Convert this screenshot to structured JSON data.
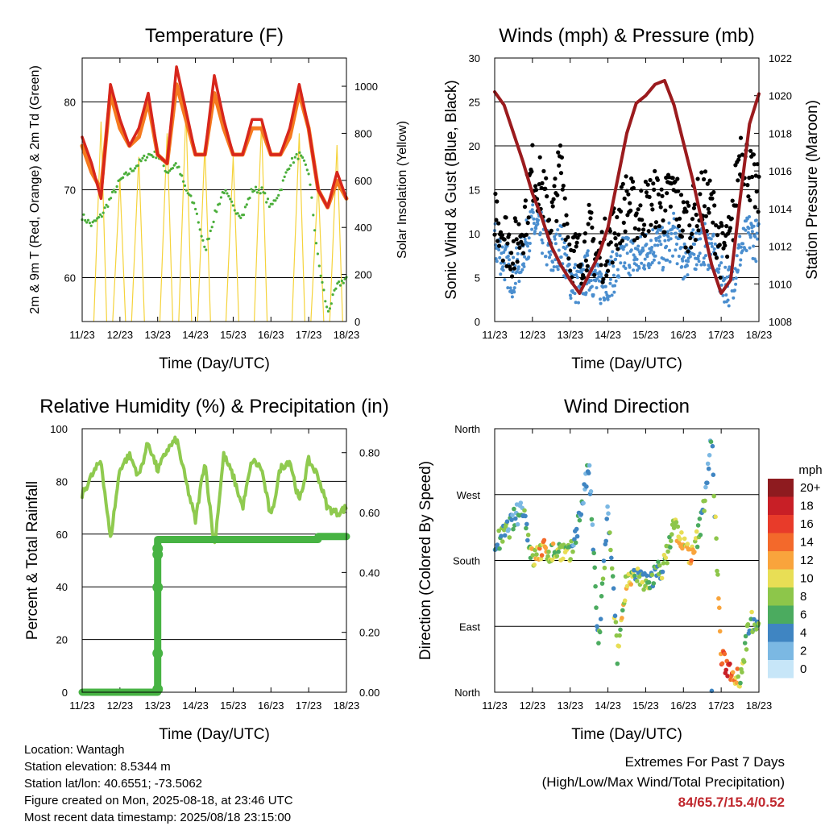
{
  "colors": {
    "temp2m": "#d7261c",
    "temp9m": "#f57a1f",
    "dewpoint": "#4aae3a",
    "solar": "#f5d33b",
    "wind": "#4a8ecf",
    "gust": "#000000",
    "pressure": "#9b1b1e",
    "rh": "#8fca4f",
    "rain": "#47b343"
  },
  "x_tick_labels": [
    "11/23",
    "12/23",
    "13/23",
    "14/23",
    "15/23",
    "16/23",
    "17/23",
    "18/23"
  ],
  "x_axis_label": "Time (Day/UTC)",
  "wind_dir_colorbar": {
    "unit": "mph",
    "labels": [
      "20+",
      "18",
      "16",
      "14",
      "12",
      "10",
      "8",
      "6",
      "4",
      "2",
      "0"
    ],
    "colors": [
      "#8e1b1f",
      "#c81f26",
      "#e83b2a",
      "#f3692b",
      "#f9a43c",
      "#e8de55",
      "#8dc64a",
      "#4bab5f",
      "#3f85c2",
      "#7bb8e3",
      "#c7e6f8"
    ]
  },
  "info": {
    "location": "Location: Wantagh",
    "elevation": "Station elevation: 8.5344 m",
    "latlon": "Station lat/lon: 40.6551; -73.5062",
    "created": "Figure created on Mon, 2025-08-18, at 23:46 UTC",
    "recent": "Most recent data timestamp: 2025/08/18 23:15:00"
  },
  "extremes": {
    "line1": "Extremes For Past 7 Days",
    "line2": "(High/Low/Max Wind/Total Precipitation)",
    "values": "84/65.7/15.4/0.52"
  },
  "chart_data": [
    {
      "type": "line",
      "title": "Temperature (F)",
      "xlabel": "Time (Day/UTC)",
      "ylabel": "2m & 9m T (Red, Orange) & 2m Td (Green)",
      "ylabel_right": "Solar Insolation (Yellow)",
      "ylim": [
        55,
        85
      ],
      "ylim_right": [
        0,
        1120
      ],
      "yticks": [
        "60",
        "70",
        "80"
      ],
      "yticks_right": [
        "0",
        "200",
        "400",
        "600",
        "800",
        "1000"
      ],
      "x": [
        11,
        11.25,
        11.5,
        11.75,
        12,
        12.25,
        12.5,
        12.75,
        13,
        13.25,
        13.5,
        13.75,
        14,
        14.25,
        14.5,
        14.75,
        15,
        15.25,
        15.5,
        15.75,
        16,
        16.25,
        16.5,
        16.75,
        17,
        17.25,
        17.5,
        17.75,
        18
      ],
      "series": [
        {
          "name": "2m T",
          "values": [
            76,
            73,
            69,
            82,
            78,
            75,
            77,
            81,
            74,
            73,
            84,
            79,
            74,
            74,
            83,
            78,
            74,
            74,
            78,
            78,
            74,
            74,
            77,
            82,
            77,
            70,
            68,
            72,
            69
          ]
        },
        {
          "name": "9m T",
          "values": [
            75,
            72,
            70,
            81,
            77,
            75,
            76,
            80,
            74,
            73,
            82,
            78,
            74,
            74,
            81,
            77,
            74,
            74,
            77,
            77,
            74,
            74,
            76,
            81,
            77,
            70,
            68,
            71,
            69
          ]
        },
        {
          "name": "2m Td",
          "values": [
            67,
            66,
            67,
            69,
            71,
            72,
            73,
            74,
            74,
            72,
            73,
            70,
            68,
            63,
            67,
            70,
            68,
            67,
            70,
            70,
            68,
            70,
            73,
            74,
            72,
            62,
            56,
            59,
            60
          ]
        },
        {
          "name": "Solar",
          "values": [
            0,
            0,
            850,
            0,
            600,
            0,
            700,
            0,
            0,
            800,
            0,
            900,
            0,
            750,
            0,
            0,
            700,
            0,
            0,
            850,
            0,
            0,
            0,
            800,
            0,
            600,
            0,
            750,
            0
          ],
          "axis": "right"
        }
      ]
    },
    {
      "type": "scatter",
      "title": "Winds (mph) & Pressure (mb)",
      "xlabel": "Time (Day/UTC)",
      "ylabel": "Sonic Wind & Gust (Blue, Black)",
      "ylabel_right": "Station Pressure (Maroon)",
      "ylim": [
        0,
        30
      ],
      "ylim_right": [
        1008,
        1022
      ],
      "yticks": [
        "0",
        "5",
        "10",
        "15",
        "20",
        "25",
        "30"
      ],
      "yticks_right": [
        "1008",
        "1010",
        "1012",
        "1014",
        "1016",
        "1018",
        "1020",
        "1022"
      ],
      "x": [
        11,
        11.25,
        11.5,
        11.75,
        12,
        12.25,
        12.5,
        12.75,
        13,
        13.25,
        13.5,
        13.75,
        14,
        14.25,
        14.5,
        14.75,
        15,
        15.25,
        15.5,
        15.75,
        16,
        16.25,
        16.5,
        16.75,
        17,
        17.25,
        17.5,
        17.75,
        18
      ],
      "series": [
        {
          "name": "Wind",
          "values": [
            9,
            7,
            5,
            8,
            11,
            10,
            7,
            9,
            5,
            4,
            6,
            4,
            5,
            6,
            8,
            7,
            8,
            9,
            8,
            10,
            7,
            8,
            9,
            8,
            5,
            4,
            8,
            10,
            9
          ]
        },
        {
          "name": "Gust",
          "values": [
            13,
            10,
            8,
            11,
            17,
            15,
            11,
            18,
            8,
            7,
            10,
            7,
            9,
            11,
            14,
            12,
            13,
            14,
            13,
            15,
            11,
            12,
            14,
            13,
            8,
            9,
            20,
            17,
            14
          ]
        },
        {
          "name": "Pressure",
          "values": [
            1020.2,
            1019.5,
            1018,
            1016.5,
            1014.8,
            1013.5,
            1012,
            1011,
            1010.2,
            1009.5,
            1010.5,
            1011.5,
            1013,
            1015.5,
            1018,
            1019.6,
            1020,
            1020.6,
            1020.8,
            1019.5,
            1017.5,
            1015.5,
            1013.2,
            1011,
            1009.5,
            1010.2,
            1014.5,
            1018.5,
            1020.1
          ],
          "axis": "right"
        }
      ]
    },
    {
      "type": "line",
      "title": "Relative Humidity (%) & Precipitation (in)",
      "xlabel": "Time (Day/UTC)",
      "ylabel": "Percent & Total Rainfall",
      "ylim": [
        0,
        100
      ],
      "ylim_right": [
        0,
        0.88
      ],
      "yticks": [
        "0",
        "20",
        "40",
        "60",
        "80",
        "100"
      ],
      "yticks_right": [
        "0.00",
        "0.20",
        "0.40",
        "0.60",
        "0.80"
      ],
      "x": [
        11,
        11.25,
        11.5,
        11.75,
        12,
        12.25,
        12.5,
        12.75,
        13,
        13.25,
        13.5,
        13.75,
        14,
        14.25,
        14.5,
        14.75,
        15,
        15.25,
        15.5,
        15.75,
        16,
        16.25,
        16.5,
        16.75,
        17,
        17.25,
        17.5,
        17.75,
        18
      ],
      "series": [
        {
          "name": "RH",
          "values": [
            75,
            82,
            88,
            58,
            85,
            90,
            82,
            95,
            84,
            92,
            96,
            80,
            65,
            88,
            55,
            90,
            82,
            70,
            88,
            85,
            66,
            85,
            88,
            72,
            88,
            82,
            70,
            68,
            70
          ]
        },
        {
          "name": "Rain",
          "values": [
            0,
            0,
            0,
            0,
            0,
            0,
            0,
            0,
            0.51,
            0.51,
            0.51,
            0.51,
            0.51,
            0.51,
            0.51,
            0.51,
            0.51,
            0.51,
            0.51,
            0.51,
            0.51,
            0.51,
            0.51,
            0.51,
            0.51,
            0.52,
            0.52,
            0.52,
            0.52
          ],
          "axis": "right"
        }
      ]
    },
    {
      "type": "scatter",
      "title": "Wind Direction",
      "xlabel": "Time (Day/UTC)",
      "ylabel": "Direction (Colored By Speed)",
      "ylim": [
        0,
        360
      ],
      "ytick_labels": [
        "North",
        "East",
        "South",
        "West",
        "North"
      ],
      "x": [
        11,
        11.25,
        11.5,
        11.75,
        12,
        12.25,
        12.5,
        12.75,
        13,
        13.25,
        13.5,
        13.75,
        14,
        14.25,
        14.5,
        14.75,
        15,
        15.25,
        15.5,
        15.75,
        16,
        16.25,
        16.5,
        16.75,
        17,
        17.25,
        17.5,
        17.75,
        18
      ],
      "series": [
        {
          "name": "Direction",
          "values": [
            200,
            215,
            235,
            255,
            180,
            195,
            190,
            195,
            185,
            240,
            310,
            60,
            250,
            50,
            160,
            155,
            150,
            160,
            175,
            230,
            200,
            185,
            240,
            350,
            45,
            30,
            20,
            95,
            100
          ]
        },
        {
          "name": "Speed",
          "values": [
            5,
            6,
            4,
            5,
            10,
            12,
            8,
            9,
            7,
            4,
            3,
            6,
            5,
            7,
            10,
            6,
            7,
            5,
            8,
            9,
            10,
            11,
            6,
            3,
            14,
            16,
            9,
            6,
            7
          ]
        }
      ]
    }
  ]
}
